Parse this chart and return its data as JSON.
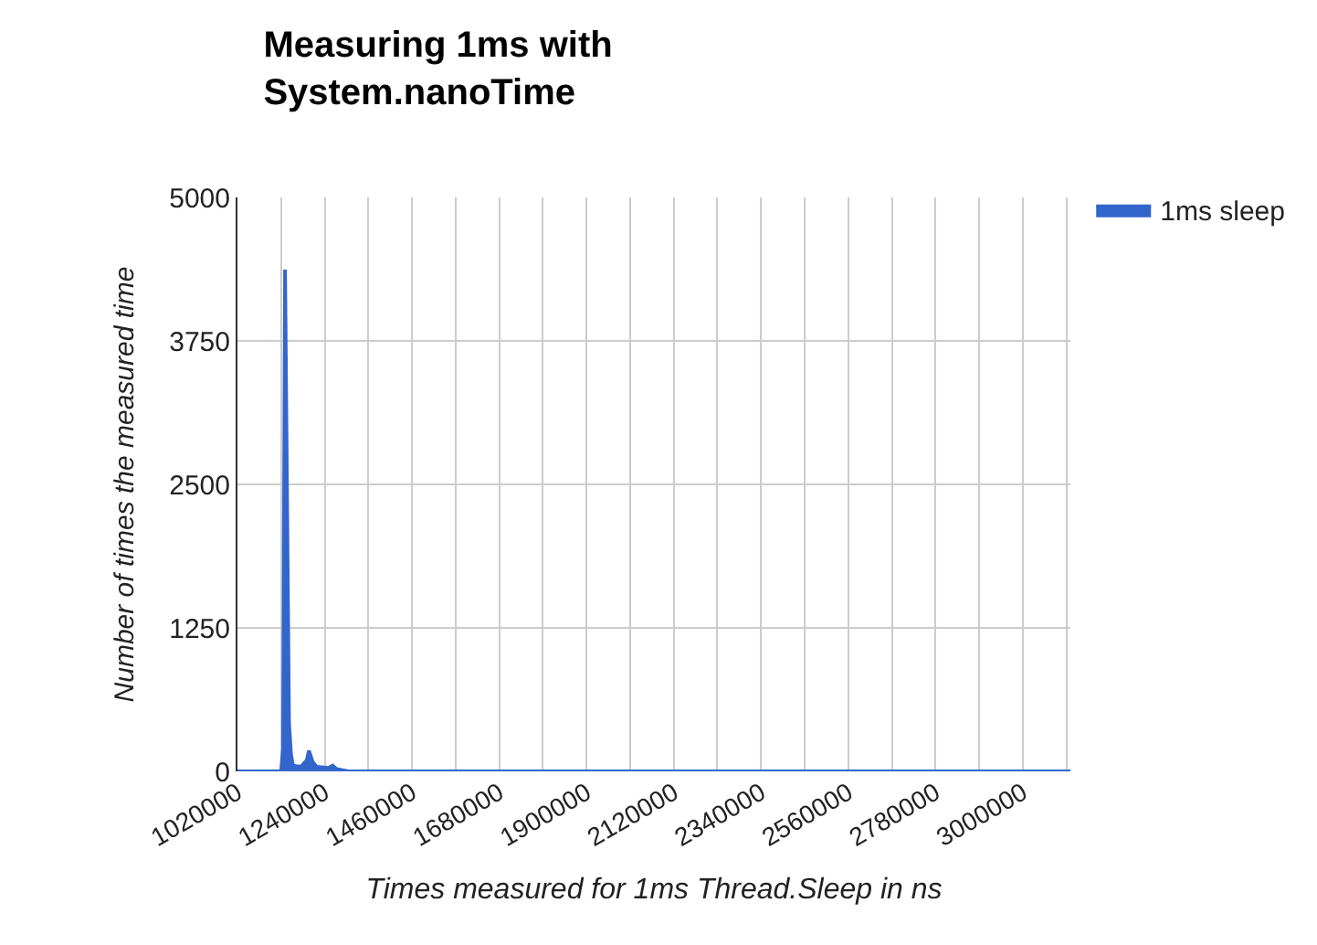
{
  "chart_data": {
    "type": "area",
    "title": "Measuring 1ms with System.nanoTime",
    "xlabel": "Times measured for 1ms Thread.Sleep in ns",
    "ylabel": "Number of times the measured time",
    "x": [
      1020000,
      1100000,
      1130000,
      1135000,
      1140000,
      1145000,
      1150000,
      1155000,
      1160000,
      1180000,
      1195000,
      1200000,
      1210000,
      1220000,
      1250000,
      1260000,
      1270000,
      1300000,
      3120000
    ],
    "series": [
      {
        "name": "1ms sleep",
        "color": "#3366cc",
        "values": [
          0,
          0,
          0,
          200,
          4370,
          2400,
          420,
          150,
          50,
          40,
          100,
          180,
          80,
          40,
          30,
          50,
          20,
          0,
          0
        ]
      }
    ],
    "xlim": [
      1020000,
      3120000
    ],
    "xticks": [
      1020000,
      {
        "value": 1130000,
        "label": null
      },
      1240000,
      {
        "value": 1350000,
        "label": null
      },
      1460000,
      {
        "value": 1570000,
        "label": null
      },
      1680000,
      {
        "value": 1790000,
        "label": null
      },
      1900000,
      {
        "value": 2010000,
        "label": null
      },
      2120000,
      {
        "value": 2230000,
        "label": null
      },
      2340000,
      {
        "value": 2450000,
        "label": null
      },
      2560000,
      {
        "value": 2670000,
        "label": null
      },
      2780000,
      {
        "value": 2890000,
        "label": null
      },
      3000000,
      {
        "value": 3110000,
        "label": null
      }
    ],
    "ylim": [
      0,
      5000
    ],
    "yticks": [
      0,
      1250,
      2500,
      3750,
      5000
    ],
    "grid": true,
    "legend": "top right"
  }
}
